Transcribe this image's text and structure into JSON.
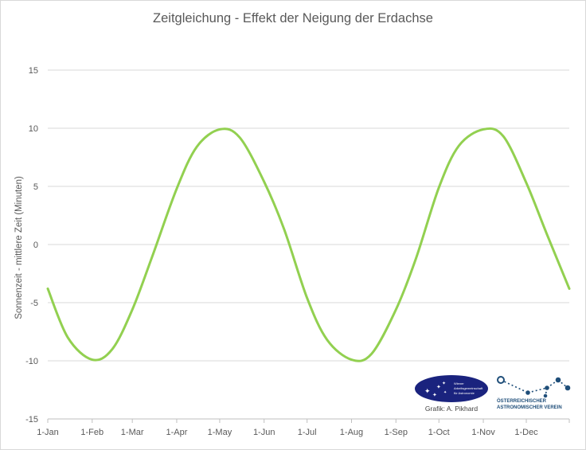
{
  "chart_data": {
    "type": "line",
    "title": "Zeitgleichung - Effekt der Neigung der Erdachse",
    "xlabel": "",
    "ylabel": "Sonnenzeit - mittlere Zeit (Minuten)",
    "ylim": [
      -15,
      15
    ],
    "yticks": [
      15,
      10,
      5,
      0,
      -5,
      -10,
      -15
    ],
    "xlim": [
      "1-Jan",
      "31-Dec"
    ],
    "xticks": [
      "1-Jan",
      "1-Feb",
      "1-Mar",
      "1-Apr",
      "1-May",
      "1-Jun",
      "1-Jul",
      "1-Aug",
      "1-Sep",
      "1-Oct",
      "1-Nov",
      "1-Dec"
    ],
    "grid": true,
    "legend": "none",
    "series": [
      {
        "color": "#92d050",
        "x": [
          "1-Jan",
          "15-Jan",
          "1-Feb",
          "15-Feb",
          "1-Mar",
          "15-Mar",
          "1-Apr",
          "15-Apr",
          "1-May",
          "15-May",
          "1-Jun",
          "15-Jun",
          "1-Jul",
          "15-Jul",
          "1-Aug",
          "15-Aug",
          "1-Sep",
          "15-Sep",
          "1-Oct",
          "15-Oct",
          "1-Nov",
          "15-Nov",
          "1-Dec",
          "15-Dec",
          "31-Dec"
        ],
        "y": [
          -3.8,
          -8.0,
          -9.9,
          -9.0,
          -5.6,
          -1.0,
          4.8,
          8.4,
          9.9,
          9.2,
          5.4,
          1.3,
          -4.6,
          -8.2,
          -9.9,
          -9.4,
          -5.6,
          -1.2,
          4.9,
          8.5,
          9.9,
          9.3,
          5.3,
          1.0,
          -3.8
        ]
      }
    ],
    "annotations": [
      "Grafik: A. Pikhard"
    ]
  },
  "logos": {
    "wiener": {
      "name": "wiener-arbeitsgemeinschaft-logo",
      "lines": [
        "Wiener",
        "Arbeitsgemeinschaft",
        "für Astronomie"
      ],
      "color": "#1a237e"
    },
    "oeav": {
      "name": "oeav-logo",
      "line1": "ÖSTERREICHISCHER",
      "line2": "ASTRONOMISCHER VEREIN",
      "color": "#1f4e79"
    }
  }
}
